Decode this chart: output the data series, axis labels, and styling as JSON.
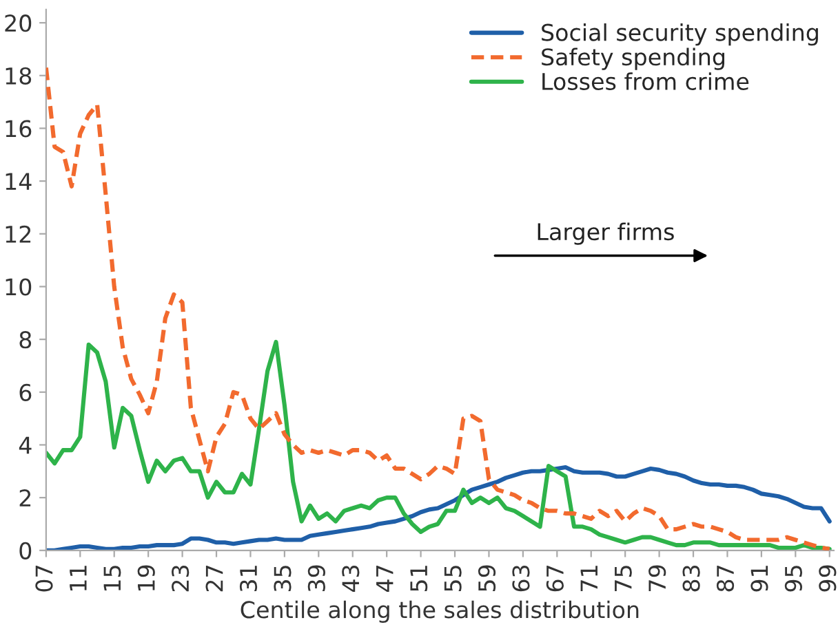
{
  "chart_data": {
    "type": "line",
    "xlabel": "Centile along the sales distribution",
    "x": [
      7,
      8,
      9,
      10,
      11,
      12,
      13,
      14,
      15,
      16,
      17,
      18,
      19,
      20,
      21,
      22,
      23,
      24,
      25,
      26,
      27,
      28,
      29,
      30,
      31,
      32,
      33,
      34,
      35,
      36,
      37,
      38,
      39,
      40,
      41,
      42,
      43,
      44,
      45,
      46,
      47,
      48,
      49,
      50,
      51,
      52,
      53,
      54,
      55,
      56,
      57,
      58,
      59,
      60,
      61,
      62,
      63,
      64,
      65,
      66,
      67,
      68,
      69,
      70,
      71,
      72,
      73,
      74,
      75,
      76,
      77,
      78,
      79,
      80,
      81,
      82,
      83,
      84,
      85,
      86,
      87,
      88,
      89,
      90,
      91,
      92,
      93,
      94,
      95,
      96,
      97,
      98,
      99
    ],
    "series": [
      {
        "name": "Social security spending",
        "color": "#1f5fa8",
        "line_style": "solid",
        "values": [
          0,
          0,
          0.05,
          0.1,
          0.15,
          0.15,
          0.1,
          0.05,
          0.05,
          0.1,
          0.1,
          0.15,
          0.15,
          0.2,
          0.2,
          0.2,
          0.25,
          0.45,
          0.45,
          0.4,
          0.3,
          0.3,
          0.25,
          0.3,
          0.35,
          0.4,
          0.4,
          0.45,
          0.4,
          0.4,
          0.4,
          0.55,
          0.6,
          0.65,
          0.7,
          0.75,
          0.8,
          0.85,
          0.9,
          1.0,
          1.05,
          1.1,
          1.2,
          1.3,
          1.45,
          1.55,
          1.6,
          1.75,
          1.9,
          2.1,
          2.3,
          2.4,
          2.5,
          2.6,
          2.75,
          2.85,
          2.95,
          3.0,
          3.0,
          3.05,
          3.1,
          3.15,
          3.0,
          2.95,
          2.95,
          2.95,
          2.9,
          2.8,
          2.8,
          2.9,
          3.0,
          3.1,
          3.05,
          2.95,
          2.9,
          2.8,
          2.65,
          2.55,
          2.5,
          2.5,
          2.45,
          2.45,
          2.4,
          2.3,
          2.15,
          2.1,
          2.05,
          1.95,
          1.8,
          1.65,
          1.6,
          1.6,
          1.1
        ]
      },
      {
        "name": "Safety spending",
        "color": "#f26a2e",
        "line_style": "dashed",
        "values": [
          18.3,
          15.3,
          15.1,
          13.8,
          15.8,
          16.5,
          16.9,
          13.5,
          10,
          7.7,
          6.5,
          5.9,
          5.2,
          6.4,
          8.8,
          9.7,
          9.4,
          5.4,
          4.2,
          3.0,
          4.3,
          4.8,
          6.0,
          5.9,
          5.0,
          4.6,
          4.9,
          5.2,
          4.4,
          4.0,
          3.7,
          3.8,
          3.7,
          3.8,
          3.7,
          3.6,
          3.8,
          3.8,
          3.7,
          3.4,
          3.6,
          3.1,
          3.1,
          2.9,
          2.7,
          2.9,
          3.2,
          3.1,
          2.9,
          5.0,
          5.1,
          4.9,
          2.7,
          2.3,
          2.2,
          2.1,
          1.9,
          1.8,
          1.6,
          1.5,
          1.5,
          1.4,
          1.4,
          1.3,
          1.2,
          1.5,
          1.3,
          1.5,
          1.1,
          1.4,
          1.6,
          1.5,
          1.3,
          0.8,
          0.8,
          0.9,
          1.0,
          0.9,
          0.9,
          0.8,
          0.7,
          0.5,
          0.4,
          0.4,
          0.4,
          0.4,
          0.4,
          0.5,
          0.4,
          0.3,
          0.2,
          0.1,
          0.05
        ]
      },
      {
        "name": "Losses from crime",
        "color": "#2eb34a",
        "line_style": "solid",
        "values": [
          3.7,
          3.3,
          3.8,
          3.8,
          4.3,
          7.8,
          7.5,
          6.4,
          3.9,
          5.4,
          5.1,
          3.8,
          2.6,
          3.4,
          3.0,
          3.4,
          3.5,
          3.0,
          3.0,
          2.0,
          2.6,
          2.2,
          2.2,
          2.9,
          2.5,
          4.6,
          6.8,
          7.9,
          5.5,
          2.6,
          1.1,
          1.7,
          1.2,
          1.4,
          1.1,
          1.5,
          1.6,
          1.7,
          1.6,
          1.9,
          2.0,
          2.0,
          1.4,
          1.0,
          0.7,
          0.9,
          1.0,
          1.5,
          1.5,
          2.3,
          1.8,
          2.0,
          1.8,
          2.0,
          1.6,
          1.5,
          1.3,
          1.1,
          0.9,
          3.2,
          3.0,
          2.8,
          0.9,
          0.9,
          0.8,
          0.6,
          0.5,
          0.4,
          0.3,
          0.4,
          0.5,
          0.5,
          0.4,
          0.3,
          0.2,
          0.2,
          0.3,
          0.3,
          0.3,
          0.2,
          0.2,
          0.2,
          0.2,
          0.2,
          0.2,
          0.2,
          0.1,
          0.1,
          0.1,
          0.2,
          0.1,
          0.1,
          0.05
        ]
      }
    ],
    "xlim": [
      7,
      99.5
    ],
    "xticks": [
      {
        "value": 7,
        "label": "07"
      },
      11,
      15,
      19,
      23,
      27,
      31,
      35,
      39,
      43,
      47,
      51,
      55,
      59,
      63,
      67,
      71,
      75,
      79,
      83,
      87,
      91,
      95,
      99
    ],
    "ylim": [
      0,
      20.5
    ],
    "yticks": [
      0,
      2,
      4,
      6,
      8,
      10,
      12,
      14,
      16,
      18,
      20
    ],
    "annotations": [
      "Larger firms"
    ],
    "grid": false,
    "legend": "top right",
    "marker": "none"
  }
}
